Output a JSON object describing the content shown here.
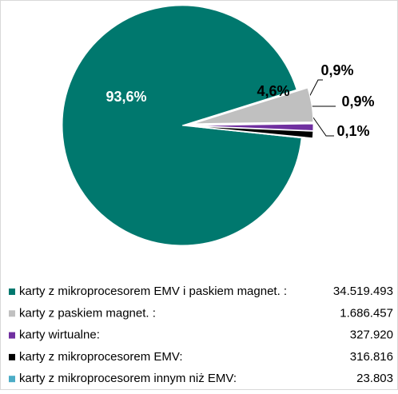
{
  "chart_data": {
    "type": "pie",
    "categories": [
      "karty z mikroprocesorem EMV i paskiem magnet. :",
      "karty z paskiem magnet. :",
      "karty wirtualne:",
      "karty z mikroprocesorem EMV:",
      "karty z mikroprocesorem innym niż EMV:"
    ],
    "values": [
      93.6,
      4.6,
      0.9,
      0.9,
      0.1
    ],
    "value_labels": [
      "93,6%",
      "4,6%",
      "0,9%",
      "0,9%",
      "0,1%"
    ],
    "colors": [
      "#00786e",
      "#c0c0c0",
      "#7030a0",
      "#000000",
      "#4bacc6"
    ],
    "counts": [
      {
        "value": 34519493,
        "label": "34.519.493"
      },
      {
        "value": 1686457,
        "label": "1.686.457"
      },
      {
        "value": 327920,
        "label": "327.920"
      },
      {
        "value": 316816,
        "label": "316.816"
      },
      {
        "value": 23803,
        "label": "23.803"
      }
    ]
  }
}
